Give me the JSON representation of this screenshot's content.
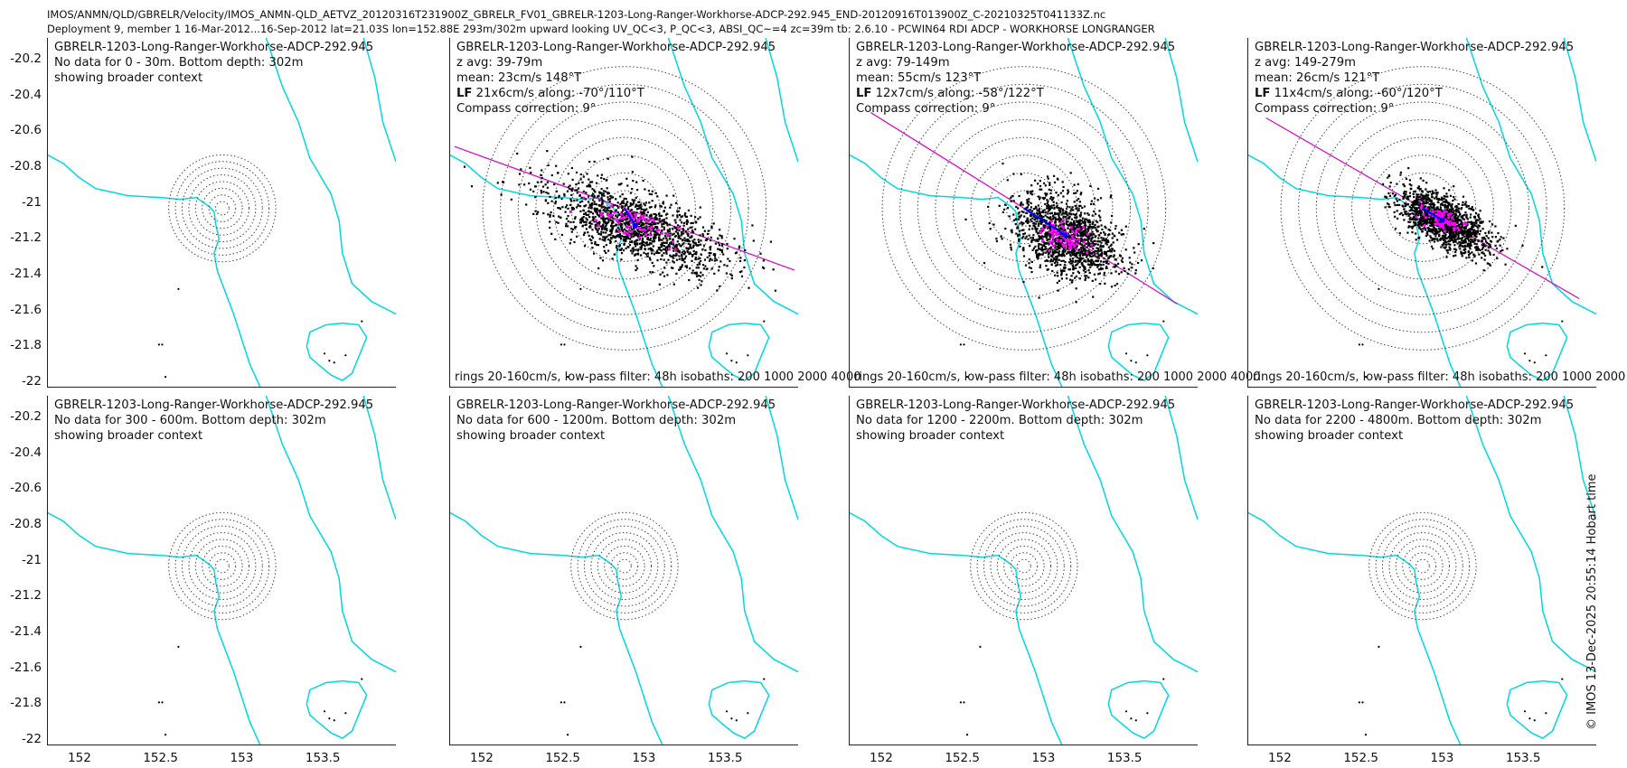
{
  "header": {
    "line1": "IMOS/ANMN/QLD/GBRELR/Velocity/IMOS_ANMN-QLD_AETVZ_20120316T231900Z_GBRELR_FV01_GBRELR-1203-Long-Ranger-Workhorse-ADCP-292.945_END-20120916T013900Z_C-20210325T041133Z.nc",
    "line2": "Deployment 9, member 1 16-Mar-2012...16-Sep-2012 lat=21.03S lon=152.88E 293m/302m upward looking UV_QC<3, P_QC<3, ABSI_QC~=4 zc=39m tb: 2.6.10 - PCWIN64 RDI ADCP - WORKHORSE LONGRANGER"
  },
  "credit": "© IMOS 13-Dec-2025 20:55:14 Hobart time",
  "colors": {
    "coast": "#00d8e0",
    "points": "#000000",
    "lowpass": "#ff00ff",
    "mean": "#0000ff",
    "majoraxis": "#d400c8",
    "rings": "#444444"
  },
  "chart_data": {
    "type": "scatter",
    "xlabel": "",
    "ylabel": "",
    "xlim": [
      151.8,
      153.95
    ],
    "ylim": [
      -22.03,
      -20.08
    ],
    "xticks": [
      152,
      152.5,
      153,
      153.5
    ],
    "xtick_labels": [
      "152",
      "152.5",
      "153",
      "153.5"
    ],
    "yticks": [
      -20.2,
      -20.4,
      -20.6,
      -20.8,
      -21,
      -21.2,
      -21.4,
      -21.6,
      -21.8,
      -22
    ],
    "ytick_labels": [
      "-20.2",
      "-20.4",
      "-20.6",
      "-20.8",
      "-21",
      "-21.2",
      "-21.4",
      "-21.6",
      "-21.8",
      "-22"
    ],
    "mooring": {
      "lon": 152.88,
      "lat": -21.03
    },
    "footer_text": "rings 20-160cm/s, low-pass filter: 48h isobaths: 200 1000 2000 4000",
    "panels": [
      {
        "title": "GBRELR-1203-Long-Ranger-Workhorse-ADCP-292.945",
        "line2": "No data for 0 - 30m. Bottom depth: 302m",
        "line3": "showing broader context",
        "line4": "",
        "line5": "",
        "has_data": false,
        "small_rings": true
      },
      {
        "title": "GBRELR-1203-Long-Ranger-Workhorse-ADCP-292.945",
        "line2": "z avg: 39-79m",
        "line3": "mean: 23cm/s 148°T",
        "lf_label": "LF",
        "lf_text": " 21x6cm/s along: -70°/110°T",
        "line5": "Compass correction: 9°",
        "has_data": true,
        "small_rings": false,
        "mean_speed_cms": 23,
        "mean_dir_degT": 148,
        "major_axis_degT": 110,
        "ellipse_major_cms": 21,
        "ellipse_minor_cms": 6
      },
      {
        "title": "GBRELR-1203-Long-Ranger-Workhorse-ADCP-292.945",
        "line2": "z avg: 79-149m",
        "line3": "mean: 55cm/s 123°T",
        "lf_label": "LF",
        "lf_text": " 12x7cm/s along: -58°/122°T",
        "line5": "Compass correction: 9°",
        "has_data": true,
        "small_rings": false,
        "mean_speed_cms": 55,
        "mean_dir_degT": 123,
        "major_axis_degT": 122,
        "ellipse_major_cms": 12,
        "ellipse_minor_cms": 7
      },
      {
        "title": "GBRELR-1203-Long-Ranger-Workhorse-ADCP-292.945",
        "line2": "z avg: 149-279m",
        "line3": "mean: 26cm/s 121°T",
        "lf_label": "LF",
        "lf_text": " 11x4cm/s along: -60°/120°T",
        "line5": "Compass correction: 9°",
        "has_data": true,
        "small_rings": false,
        "mean_speed_cms": 26,
        "mean_dir_degT": 121,
        "major_axis_degT": 120,
        "ellipse_major_cms": 11,
        "ellipse_minor_cms": 4
      },
      {
        "title": "GBRELR-1203-Long-Ranger-Workhorse-ADCP-292.945",
        "line2": "No data for 300 - 600m. Bottom depth: 302m",
        "line3": "showing broader context",
        "line4": "",
        "line5": "",
        "has_data": false,
        "small_rings": true
      },
      {
        "title": "GBRELR-1203-Long-Ranger-Workhorse-ADCP-292.945",
        "line2": "No data for 600 - 1200m. Bottom depth: 302m",
        "line3": "showing broader context",
        "line4": "",
        "line5": "",
        "has_data": false,
        "small_rings": true
      },
      {
        "title": "GBRELR-1203-Long-Ranger-Workhorse-ADCP-292.945",
        "line2": "No data for 1200 - 2200m. Bottom depth: 302m",
        "line3": "showing broader context",
        "line4": "",
        "line5": "",
        "has_data": false,
        "small_rings": true
      },
      {
        "title": "GBRELR-1203-Long-Ranger-Workhorse-ADCP-292.945",
        "line2": "No data for 2200 - 4800m. Bottom depth: 302m",
        "line3": "showing broader context",
        "line4": "",
        "line5": "",
        "has_data": false,
        "small_rings": true
      }
    ]
  }
}
